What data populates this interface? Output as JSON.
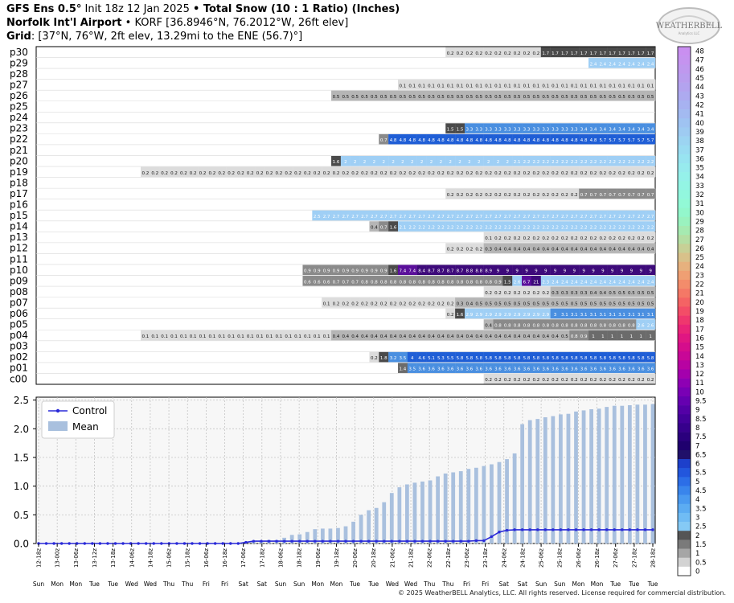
{
  "header": {
    "line1_model": "GFS Ens 0.5°",
    "line1_init": " Init 18z 12 Jan 2025 ",
    "line1_sep": "•",
    "line1_title": " Total Snow (10 : 1 Ratio) (Inches)",
    "line2_site": "Norfolk Int'l Airport",
    "line2_sep": " • ",
    "line2_details": "KORF [36.8946°N, 76.2012°W, 26ft elev]",
    "line3_label": "Grid",
    "line3_details": ": [37°N, 76°W, 2ft elev, 13.29mi to the ENE (56.7)°]"
  },
  "logo": {
    "text": "WEATHERBELL",
    "sub": "Analytics LLC"
  },
  "footer": "© 2025 WeatherBELL Analytics, LLC. All rights reserved. License required for commercial distribution.",
  "colors": {
    "gray_light": "#dcdcdc",
    "gray_mid": "#b5b5b5",
    "gray_dark": "#8a8a8a",
    "gray_darker": "#6b6b6b",
    "gray_darkest": "#4a4a4a",
    "blue_pale": "#9fcff5",
    "blue_mid": "#4a8fe0",
    "blue_deep": "#1f5ed6",
    "purple": "#5a0f9a",
    "purple_dark": "#3d0a7a",
    "control": "#2a2ad8",
    "mean": "#a9c0de"
  },
  "chart_data": [
    {
      "type": "heatmap",
      "title": "",
      "members": [
        "p30",
        "p29",
        "p28",
        "p27",
        "p26",
        "p25",
        "p24",
        "p23",
        "p22",
        "p21",
        "p20",
        "p19",
        "p18",
        "p17",
        "p16",
        "p15",
        "p14",
        "p13",
        "p12",
        "p11",
        "p10",
        "p09",
        "p08",
        "p07",
        "p06",
        "p05",
        "p04",
        "p03",
        "p02",
        "p01",
        "c00"
      ],
      "steps": 54,
      "cell_text": {
        "p30": [
          [
            32,
            "0.2",
            10
          ],
          [
            42,
            "1.7",
            12
          ]
        ],
        "p29": [
          [
            47,
            "2.4",
            7
          ]
        ],
        "p27": [
          [
            27,
            "0.1",
            27
          ]
        ],
        "p26": [
          [
            20,
            "0.5",
            34
          ]
        ],
        "p23": [
          [
            32,
            "1.5",
            2
          ],
          [
            34,
            "3.3",
            12
          ],
          [
            46,
            "3.4",
            8
          ]
        ],
        "p22": [
          [
            25,
            "0.7",
            1
          ],
          [
            26,
            "4.8",
            22
          ],
          [
            48,
            "5.7",
            6
          ]
        ],
        "p20": [
          [
            20,
            "1.6",
            1
          ],
          [
            21,
            "2",
            18
          ],
          [
            39,
            "2.1",
            1
          ],
          [
            40,
            "2.2",
            14
          ]
        ],
        "p19": [
          [
            0,
            "0.2",
            54
          ]
        ],
        "p17": [
          [
            32,
            "0.2",
            14
          ],
          [
            46,
            "0.7",
            8
          ]
        ],
        "p15": [
          [
            18,
            "2.5",
            1
          ],
          [
            19,
            "2.7",
            35
          ]
        ],
        "p14": [
          [
            24,
            "0.4",
            1
          ],
          [
            25,
            "0.7",
            1
          ],
          [
            26,
            "1.6",
            1
          ],
          [
            27,
            "2.1",
            1
          ],
          [
            28,
            "2.2",
            26
          ]
        ],
        "p13": [
          [
            36,
            "0.1",
            1
          ],
          [
            37,
            "0.2",
            17
          ]
        ],
        "p12": [
          [
            32,
            "0.2",
            4
          ],
          [
            36,
            "0.3",
            1
          ],
          [
            37,
            "0.4",
            17
          ]
        ],
        "p10": [
          [
            17,
            "0.9",
            9
          ],
          [
            26,
            "1.6",
            1
          ],
          [
            27,
            "7.4",
            2
          ],
          [
            29,
            "8.4",
            1
          ],
          [
            30,
            "8.7",
            4
          ],
          [
            34,
            "8.8",
            2
          ],
          [
            36,
            "8.9",
            1
          ],
          [
            37,
            "9",
            17
          ]
        ],
        "p09": [
          [
            17,
            "0.6",
            3
          ],
          [
            20,
            "0.7",
            3
          ],
          [
            23,
            "0.8",
            14
          ],
          [
            37,
            "0.9",
            1
          ],
          [
            38,
            "1.5",
            1
          ],
          [
            39,
            "2.6",
            1
          ],
          [
            40,
            "6.7",
            1
          ],
          [
            41,
            "21",
            1
          ],
          [
            42,
            "2.3",
            1
          ],
          [
            43,
            "2.4",
            11
          ]
        ],
        "p08": [
          [
            36,
            "0.2",
            7
          ],
          [
            43,
            "0.3",
            4
          ],
          [
            47,
            "0.4",
            2
          ],
          [
            49,
            "0.5",
            5
          ]
        ],
        "p07": [
          [
            19,
            "0.1",
            1
          ],
          [
            20,
            "0.2",
            13
          ],
          [
            33,
            "0.3",
            1
          ],
          [
            34,
            "0.4",
            1
          ],
          [
            35,
            "0.5",
            19
          ]
        ],
        "p06": [
          [
            32,
            "0.2",
            1
          ],
          [
            33,
            "1.6",
            1
          ],
          [
            34,
            "2.9",
            9
          ],
          [
            43,
            "3",
            1
          ],
          [
            44,
            "3.1",
            10
          ]
        ],
        "p05": [
          [
            36,
            "0.4",
            1
          ],
          [
            37,
            "0.8",
            15
          ],
          [
            52,
            "2.6",
            2
          ]
        ],
        "p04": [
          [
            0,
            "0.1",
            20
          ],
          [
            20,
            "0.4",
            24
          ],
          [
            44,
            "0.5",
            1
          ],
          [
            45,
            "0.8",
            1
          ],
          [
            46,
            "0.9",
            1
          ],
          [
            47,
            "1",
            7
          ]
        ],
        "p02": [
          [
            24,
            "0.2",
            1
          ],
          [
            25,
            "1.8",
            1
          ],
          [
            26,
            "3.2",
            1
          ],
          [
            27,
            "3.5",
            1
          ],
          [
            28,
            "4",
            1
          ],
          [
            29,
            "4.6",
            1
          ],
          [
            30,
            "5.1",
            1
          ],
          [
            31,
            "5.3",
            1
          ],
          [
            32,
            "5.5",
            1
          ],
          [
            33,
            "5.8",
            21
          ]
        ],
        "p01": [
          [
            27,
            "1.4",
            1
          ],
          [
            28,
            "3.5",
            1
          ],
          [
            29,
            "3.6",
            25
          ]
        ],
        "c00": [
          [
            36,
            "0.2",
            18
          ]
        ]
      }
    },
    {
      "type": "bar",
      "x_ticks": [
        "12-18z",
        "13-00z",
        "13-06z",
        "13-12z",
        "13-18z",
        "14-06z",
        "14-18z",
        "15-06z",
        "15-18z",
        "16-06z",
        "16-18z",
        "17-06z",
        "17-18z",
        "18-06z",
        "18-18z",
        "19-06z",
        "19-18z",
        "20-06z",
        "20-18z",
        "21-06z",
        "21-18z",
        "22-06z",
        "22-18z",
        "23-06z",
        "23-18z",
        "24-06z",
        "24-18z",
        "25-06z",
        "25-18z",
        "26-06z",
        "26-18z",
        "27-06z",
        "27-18z",
        "28-18z"
      ],
      "day_labels": [
        "Sun",
        "Mon",
        "Mon",
        "Tue",
        "Tue",
        "Wed",
        "Wed",
        "Thu",
        "Thu",
        "Fri",
        "Fri",
        "Sat",
        "Sat",
        "Sun",
        "Sun",
        "Mon",
        "Mon",
        "Tue",
        "Tue",
        "Wed",
        "Wed",
        "Thu",
        "Thu",
        "Fri",
        "Fri",
        "Sat",
        "Sat",
        "Sun",
        "Sun",
        "Mon",
        "Mon",
        "Tue",
        "Tue",
        "Tue"
      ],
      "ylim": [
        0,
        2.55
      ],
      "y_ticks": [
        "0.0",
        "0.5",
        "1.0",
        "1.5",
        "2.0",
        "2.5"
      ],
      "grid": true,
      "legend_position": "top-left",
      "series": [
        {
          "name": "Control",
          "kind": "line",
          "values": [
            0,
            0,
            0,
            0,
            0,
            0,
            0,
            0,
            0,
            0,
            0,
            0,
            0,
            0,
            0,
            0,
            0,
            0,
            0,
            0,
            0,
            0,
            0,
            0,
            0,
            0,
            0,
            0.02,
            0.04,
            0.04,
            0.04,
            0.04,
            0.04,
            0.04,
            0.04,
            0.04,
            0.04,
            0.04,
            0.04,
            0.04,
            0.04,
            0.04,
            0.04,
            0.04,
            0.04,
            0.04,
            0.04,
            0.04,
            0.04,
            0.04,
            0.04,
            0.04,
            0.04,
            0.04,
            0.04,
            0.04,
            0.04,
            0.05,
            0.05,
            0.12,
            0.2,
            0.23,
            0.24,
            0.24,
            0.24,
            0.24,
            0.24,
            0.24,
            0.24,
            0.24,
            0.24,
            0.24,
            0.24,
            0.24,
            0.24,
            0.24,
            0.24,
            0.24,
            0.24,
            0.24,
            0.24
          ]
        },
        {
          "name": "Mean",
          "kind": "bar",
          "values": [
            0,
            0,
            0,
            0,
            0,
            0,
            0,
            0,
            0,
            0,
            0,
            0,
            0,
            0,
            0,
            0,
            0,
            0,
            0,
            0,
            0,
            0,
            0,
            0,
            0,
            0,
            0,
            0,
            0.03,
            0.05,
            0.06,
            0.06,
            0.1,
            0.15,
            0.16,
            0.2,
            0.25,
            0.26,
            0.26,
            0.27,
            0.3,
            0.38,
            0.5,
            0.58,
            0.62,
            0.72,
            0.88,
            0.98,
            1.03,
            1.06,
            1.08,
            1.1,
            1.17,
            1.22,
            1.24,
            1.26,
            1.3,
            1.32,
            1.35,
            1.38,
            1.42,
            1.47,
            1.57,
            2.08,
            2.15,
            2.17,
            2.2,
            2.22,
            2.25,
            2.26,
            2.3,
            2.32,
            2.34,
            2.35,
            2.38,
            2.4,
            2.4,
            2.41,
            2.42,
            2.42,
            2.43
          ]
        }
      ]
    }
  ],
  "colorbar": {
    "labels": [
      "48",
      "47",
      "46",
      "45",
      "44",
      "43",
      "42",
      "41",
      "40",
      "39",
      "38",
      "37",
      "36",
      "35",
      "34",
      "33",
      "32",
      "31",
      "30",
      "29",
      "28",
      "27",
      "26",
      "25",
      "24",
      "23",
      "22",
      "21",
      "20",
      "19",
      "18",
      "17",
      "16",
      "15",
      "14",
      "13",
      "12",
      "11",
      "10",
      "9.5",
      "9",
      "8.5",
      "8",
      "7.5",
      "7",
      "6.5",
      "6",
      "5.5",
      "5",
      "4.5",
      "4",
      "3.5",
      "3",
      "2.5",
      "2",
      "1.5",
      "1",
      "0.5",
      "0"
    ],
    "colors": [
      "#c98ff0",
      "#c593ef",
      "#bf98ee",
      "#b99dee",
      "#b3a3ef",
      "#adaaf0",
      "#a7b2f1",
      "#a3baf1",
      "#9fc3f2",
      "#9ecbf2",
      "#9cd4f2",
      "#9adcf2",
      "#98e4f1",
      "#97ebee",
      "#95f1ea",
      "#93f5e4",
      "#92f7de",
      "#92f9d6",
      "#93f7cc",
      "#9af2bf",
      "#a6eab1",
      "#b5dea3",
      "#c7d096",
      "#d8c18a",
      "#e6b17e",
      "#ef9f73",
      "#f38c6b",
      "#f47866",
      "#f46364",
      "#f34d67",
      "#ef376e",
      "#e92478",
      "#e01682",
      "#d50d8c",
      "#c80797",
      "#b803a2",
      "#a400ad",
      "#8e00b4",
      "#7900b5",
      "#6500b0",
      "#5300a6",
      "#43009a",
      "#36008c",
      "#2a007d",
      "#1f006e",
      "#20106a",
      "#1d3fcb",
      "#2256dd",
      "#2c6ee7",
      "#3985ec",
      "#4a9af0",
      "#5cacf2",
      "#70bcf4",
      "#85caf5",
      "#555555",
      "#7a7a7a",
      "#a6a6a6",
      "#d3d3d3",
      "#ffffff"
    ]
  }
}
